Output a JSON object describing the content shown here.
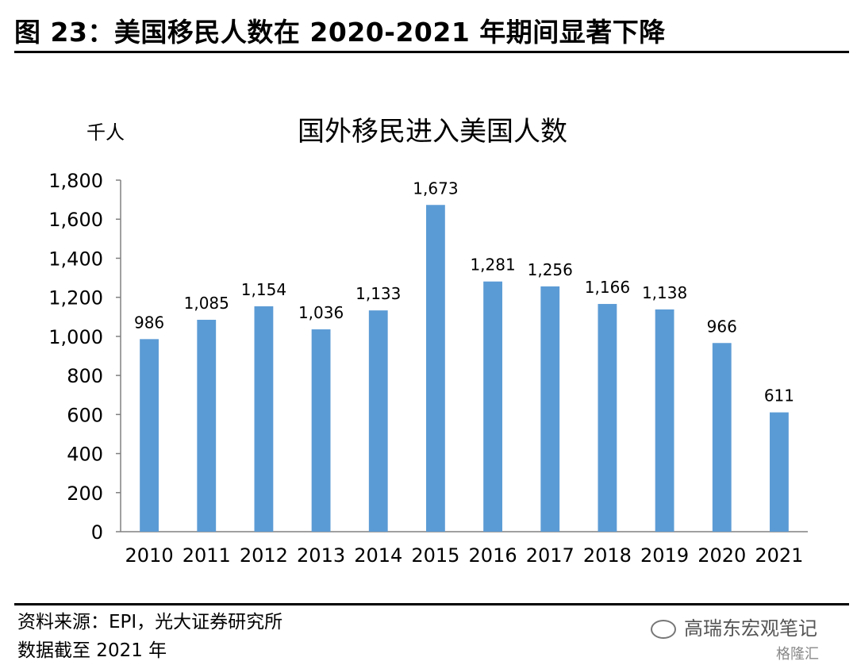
{
  "figure_title": "图 23：美国移民人数在 2020-2021 年期间显著下降",
  "source": "资料来源：EPI，光大证券研究所",
  "note": "数据截至 2021 年",
  "watermark": "高瑞东宏观笔记",
  "watermark_sub": "格隆汇",
  "chart_data": {
    "type": "bar",
    "title": "国外移民进入美国人数",
    "unit": "千人",
    "categories": [
      "2010",
      "2011",
      "2012",
      "2013",
      "2014",
      "2015",
      "2016",
      "2017",
      "2018",
      "2019",
      "2020",
      "2021"
    ],
    "values": [
      986,
      1085,
      1154,
      1036,
      1133,
      1673,
      1281,
      1256,
      1166,
      1138,
      966,
      611
    ],
    "data_labels": [
      "986",
      "1,085",
      "1,154",
      "1,036",
      "1,133",
      "1,673",
      "1,281",
      "1,256",
      "1,166",
      "1,138",
      "966",
      "611"
    ],
    "ylim": [
      0,
      1800
    ],
    "yticks": [
      "0",
      "200",
      "400",
      "600",
      "800",
      "1,000",
      "1,200",
      "1,400",
      "1,600",
      "1,800"
    ],
    "ytick_values": [
      0,
      200,
      400,
      600,
      800,
      1000,
      1200,
      1400,
      1600,
      1800
    ],
    "bar_color": "#5B9BD5",
    "grid": false
  }
}
